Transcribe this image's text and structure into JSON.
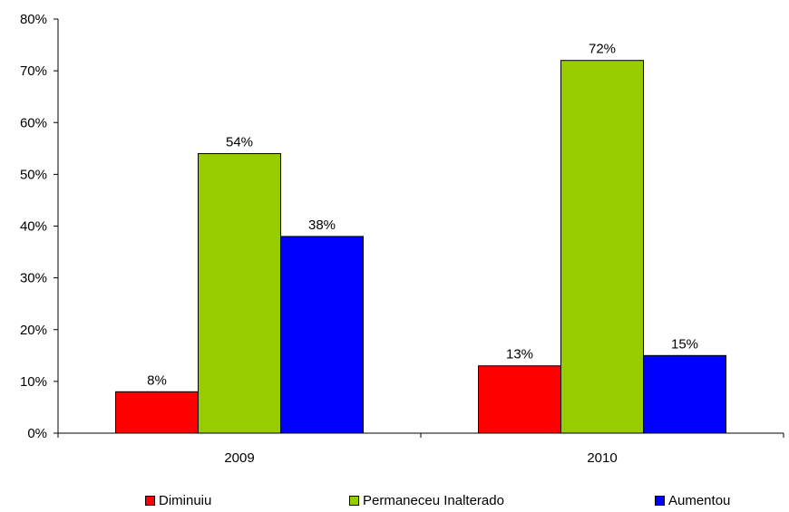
{
  "chart_data": {
    "type": "bar",
    "categories": [
      "2009",
      "2010"
    ],
    "series": [
      {
        "name": "Diminuiu",
        "values": [
          8,
          13
        ],
        "labels": [
          "8%",
          "13%"
        ],
        "color": "#ff0000"
      },
      {
        "name": "Permaneceu Inalterado",
        "values": [
          54,
          72
        ],
        "labels": [
          "54%",
          "72%"
        ],
        "color": "#99cc00"
      },
      {
        "name": "Aumentou",
        "values": [
          38,
          15
        ],
        "labels": [
          "38%",
          "15%"
        ],
        "color": "#0000ff"
      }
    ],
    "ylim": [
      0,
      80
    ],
    "yticks": [
      "0%",
      "10%",
      "20%",
      "30%",
      "40%",
      "50%",
      "60%",
      "70%",
      "80%"
    ],
    "title": "",
    "xlabel": "",
    "ylabel": "",
    "grid": false,
    "legend_position": "bottom"
  }
}
